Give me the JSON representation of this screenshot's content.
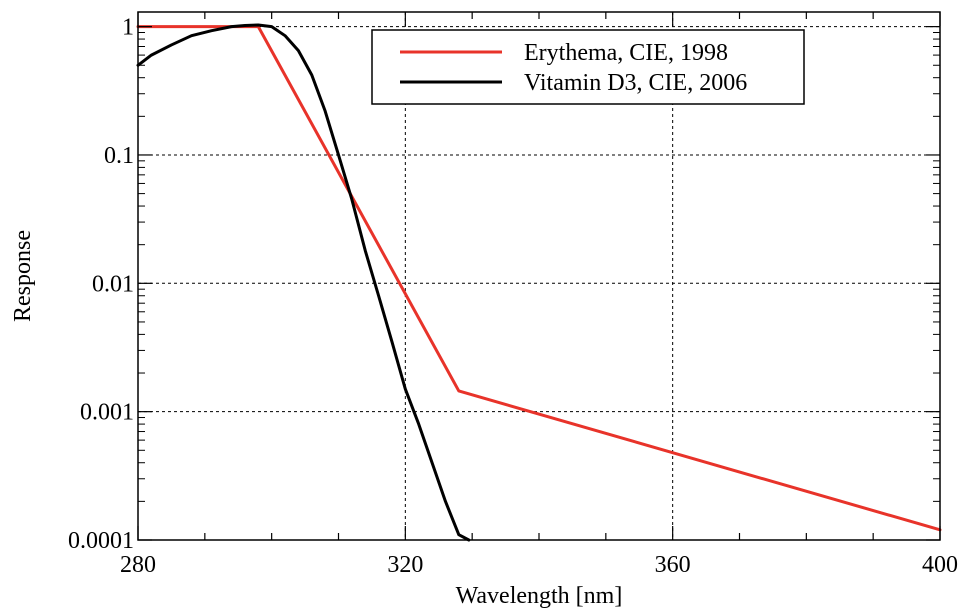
{
  "chart_data": {
    "type": "line",
    "title": "",
    "xlabel": "Wavelength [nm]",
    "ylabel": "Response",
    "xlim": [
      280,
      400
    ],
    "ylim": [
      0.0001,
      1.3
    ],
    "yscale": "log",
    "grid": true,
    "legend_position": "top-right",
    "x_ticks": [
      280,
      320,
      360,
      400
    ],
    "x_tick_labels": [
      "280",
      "320",
      "360",
      "400"
    ],
    "y_ticks": [
      0.0001,
      0.001,
      0.01,
      0.1,
      1
    ],
    "y_tick_labels": [
      "0.0001",
      "0.001",
      "0.01",
      "0.1",
      "1"
    ],
    "series": [
      {
        "name": "Erythema, CIE, 1998",
        "color": "#e8332a",
        "x": [
          280,
          298,
          328,
          400
        ],
        "y": [
          1.0,
          1.0,
          0.00145,
          0.00012
        ]
      },
      {
        "name": "Vitamin D3, CIE, 2006",
        "color": "#000000",
        "x": [
          280,
          282,
          285,
          288,
          291,
          294,
          296,
          298,
          300,
          302,
          304,
          306,
          308,
          310,
          312,
          314,
          316,
          318,
          320,
          322,
          324,
          326,
          328,
          329.5
        ],
        "y": [
          0.5,
          0.6,
          0.72,
          0.85,
          0.93,
          1.0,
          1.02,
          1.03,
          1.0,
          0.85,
          0.65,
          0.42,
          0.22,
          0.1,
          0.045,
          0.018,
          0.008,
          0.0035,
          0.0015,
          0.0008,
          0.0004,
          0.0002,
          0.00011,
          0.0001
        ]
      }
    ]
  }
}
